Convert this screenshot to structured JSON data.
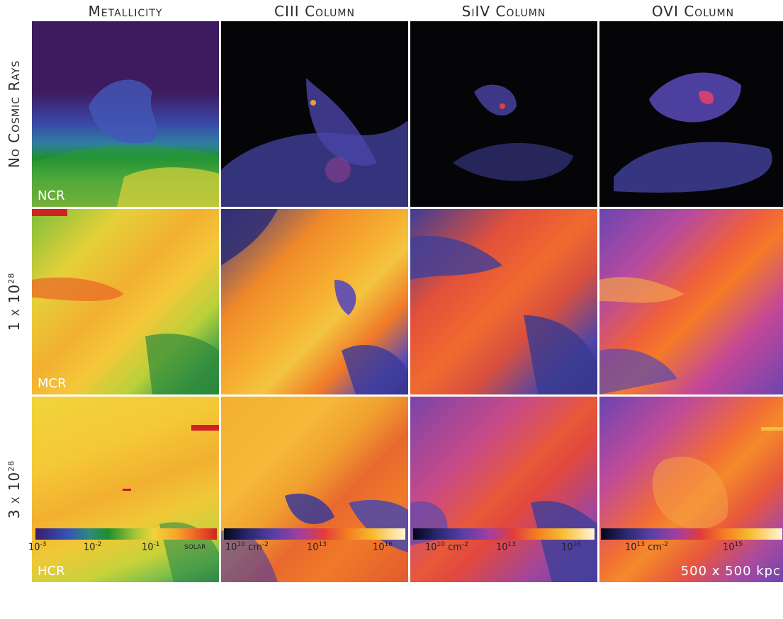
{
  "columns": [
    "Metallicity",
    "CIII Column",
    "SiIV Column",
    "OVI Column"
  ],
  "rows": [
    {
      "title": "No Cosmic Rays",
      "label": "NCR"
    },
    {
      "title_base": "1 x 10",
      "title_exp": "28",
      "label": "MCR"
    },
    {
      "title_base": "3 x 10",
      "title_exp": "28",
      "label": "HCR"
    }
  ],
  "scale_label": "500 x 500 kpc",
  "colorbars": [
    {
      "ticks": [
        {
          "base": "10",
          "exp": "-3"
        },
        {
          "base": "10",
          "exp": "-2"
        },
        {
          "base": "10",
          "exp": "-1"
        },
        {
          "base": "solar",
          "exp": ""
        }
      ]
    },
    {
      "ticks": [
        {
          "base": "10",
          "exp": "10",
          "unit": " cm",
          "unit_exp": "-2"
        },
        {
          "base": "10",
          "exp": "13"
        },
        {
          "base": "10",
          "exp": "16"
        }
      ]
    },
    {
      "ticks": [
        {
          "base": "10",
          "exp": "10",
          "unit": " cm",
          "unit_exp": "-2"
        },
        {
          "base": "10",
          "exp": "13"
        },
        {
          "base": "10",
          "exp": "16"
        }
      ]
    },
    {
      "ticks": [
        {
          "base": "10",
          "exp": "13",
          "unit": " cm",
          "unit_exp": "-2"
        },
        {
          "base": "10",
          "exp": "15"
        }
      ]
    }
  ]
}
